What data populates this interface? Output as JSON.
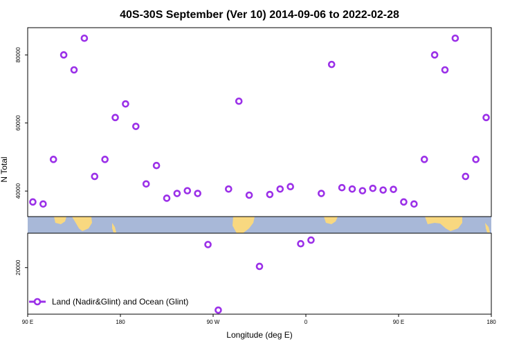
{
  "chart_data": {
    "type": "scatter",
    "title": "40S-30S September (Ver 10)   2014-09-06 to 2022-02-28",
    "xlabel": "Longitude (deg E)",
    "ylabel": "N Total",
    "x_ticks": [
      {
        "value": 90,
        "label": "90 E"
      },
      {
        "value": 180,
        "label": "180"
      },
      {
        "value": 270,
        "label": "90 W"
      },
      {
        "value": 360,
        "label": "0"
      },
      {
        "value": 450,
        "label": "90 E"
      },
      {
        "value": 540,
        "label": "180"
      }
    ],
    "y_ticks": [
      {
        "value": 20000,
        "label": "20000"
      },
      {
        "value": 40000,
        "label": "40000"
      },
      {
        "value": 60000,
        "label": "60000"
      },
      {
        "value": 80000,
        "label": "80000"
      }
    ],
    "xlim": [
      90,
      540
    ],
    "y_bands": {
      "lower": [
        8500,
        28500
      ],
      "upper": [
        32500,
        88000
      ]
    },
    "map_strip": {
      "lat_range": "40S-30S",
      "ocean_color": "#a8b8d8",
      "land_color": "#f8d880"
    },
    "series": [
      {
        "name": "Land (Nadir&Glint) and Ocean (Glint)",
        "color": "#9b30e8",
        "marker": "open-circle",
        "points": [
          [
            95,
            36800
          ],
          [
            105,
            36200
          ],
          [
            115,
            49300
          ],
          [
            125,
            80000
          ],
          [
            135,
            75600
          ],
          [
            145,
            84900
          ],
          [
            155,
            44300
          ],
          [
            165,
            49300
          ],
          [
            175,
            61600
          ],
          [
            185,
            65600
          ],
          [
            195,
            59000
          ],
          [
            205,
            42100
          ],
          [
            215,
            47500
          ],
          [
            225,
            37900
          ],
          [
            235,
            39300
          ],
          [
            245,
            40100
          ],
          [
            255,
            39300
          ],
          [
            265,
            25700
          ],
          [
            275,
            9500
          ],
          [
            285,
            40600
          ],
          [
            295,
            66400
          ],
          [
            305,
            38800
          ],
          [
            315,
            20300
          ],
          [
            325,
            39000
          ],
          [
            335,
            40600
          ],
          [
            345,
            41300
          ],
          [
            355,
            25900
          ],
          [
            365,
            26800
          ],
          [
            375,
            39300
          ],
          [
            385,
            77200
          ],
          [
            395,
            41000
          ],
          [
            405,
            40600
          ],
          [
            415,
            40100
          ],
          [
            425,
            40800
          ],
          [
            435,
            40300
          ],
          [
            445,
            40500
          ],
          [
            455,
            36800
          ],
          [
            465,
            36200
          ],
          [
            475,
            49300
          ],
          [
            485,
            80000
          ],
          [
            495,
            75600
          ],
          [
            505,
            84900
          ],
          [
            515,
            44300
          ],
          [
            525,
            49300
          ],
          [
            535,
            61600
          ]
        ]
      }
    ]
  }
}
